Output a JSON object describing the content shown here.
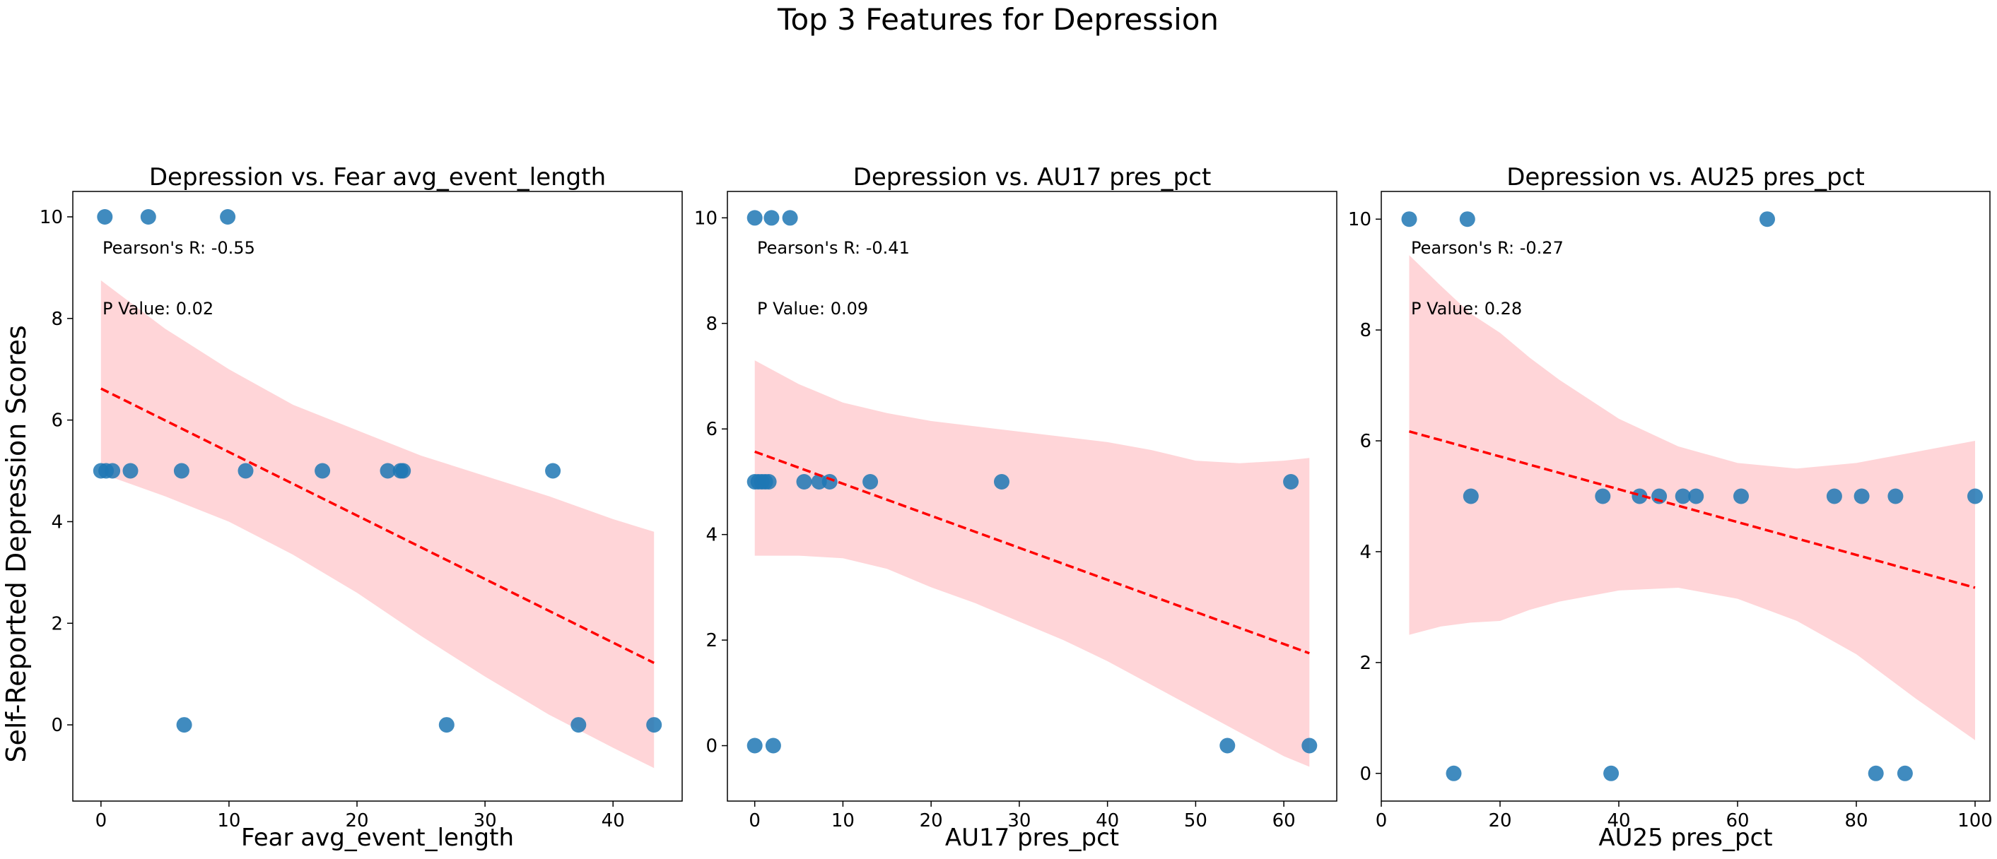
{
  "title": "Top 3 Features for Depression",
  "ylabel": "Self-Reported Depression Scores",
  "colors": {
    "points": "#1f77b4",
    "fit": "#ff0000",
    "band": "#ffb3b8"
  },
  "chart_data": [
    {
      "type": "scatter",
      "title": "Depression vs. Fear avg_event_length",
      "xlabel": "Fear avg_event_length",
      "ylabel": "Self-Reported Depression Scores",
      "xlim": [
        -2.2,
        45.4
      ],
      "ylim": [
        -1.5,
        10.5
      ],
      "xticks": [
        0,
        10,
        20,
        30,
        40
      ],
      "yticks": [
        0,
        2,
        4,
        6,
        8,
        10
      ],
      "points": [
        [
          0.3,
          10
        ],
        [
          3.7,
          10
        ],
        [
          9.9,
          10
        ],
        [
          0.0,
          5
        ],
        [
          0.4,
          5
        ],
        [
          0.9,
          5
        ],
        [
          2.3,
          5
        ],
        [
          6.3,
          5
        ],
        [
          11.3,
          5
        ],
        [
          17.3,
          5
        ],
        [
          22.4,
          5
        ],
        [
          23.4,
          5
        ],
        [
          23.6,
          5
        ],
        [
          35.3,
          5
        ],
        [
          6.5,
          0
        ],
        [
          27.0,
          0
        ],
        [
          37.3,
          0
        ],
        [
          43.2,
          0
        ]
      ],
      "fit": {
        "x": [
          0.0,
          43.2
        ],
        "y": [
          6.62,
          1.22
        ]
      },
      "band": {
        "x": [
          0,
          5,
          10,
          15,
          20,
          25,
          30,
          35,
          40,
          43.2
        ],
        "upper": [
          8.75,
          7.8,
          7.0,
          6.3,
          5.8,
          5.3,
          4.9,
          4.5,
          4.05,
          3.8
        ],
        "lower": [
          4.95,
          4.5,
          4.0,
          3.35,
          2.6,
          1.75,
          0.95,
          0.2,
          -0.45,
          -0.85
        ]
      },
      "annotations": [
        "Pearson's R: -0.55",
        "P Value: 0.02"
      ]
    },
    {
      "type": "scatter",
      "title": "Depression vs. AU17 pres_pct",
      "xlabel": "AU17 pres_pct",
      "ylabel": "",
      "xlim": [
        -3.1,
        66.0
      ],
      "ylim": [
        -1.05,
        10.5
      ],
      "xticks": [
        0,
        10,
        20,
        30,
        40,
        50,
        60
      ],
      "yticks": [
        0,
        2,
        4,
        6,
        8,
        10
      ],
      "points": [
        [
          0.0,
          10
        ],
        [
          1.9,
          10
        ],
        [
          4.0,
          10
        ],
        [
          0.0,
          5
        ],
        [
          0.4,
          5
        ],
        [
          0.8,
          5
        ],
        [
          1.2,
          5
        ],
        [
          1.6,
          5
        ],
        [
          5.6,
          5
        ],
        [
          7.3,
          5
        ],
        [
          8.5,
          5
        ],
        [
          13.1,
          5
        ],
        [
          28.0,
          5
        ],
        [
          60.8,
          5
        ],
        [
          0.0,
          0
        ],
        [
          2.1,
          0
        ],
        [
          53.6,
          0
        ],
        [
          62.9,
          0
        ]
      ],
      "fit": {
        "x": [
          0.0,
          62.9
        ],
        "y": [
          5.57,
          1.75
        ]
      },
      "band": {
        "x": [
          0,
          5,
          10,
          15,
          20,
          25,
          30,
          35,
          40,
          45,
          50,
          55,
          60,
          62.9
        ],
        "upper": [
          7.3,
          6.85,
          6.5,
          6.3,
          6.15,
          6.05,
          5.95,
          5.85,
          5.75,
          5.6,
          5.4,
          5.35,
          5.4,
          5.45
        ],
        "lower": [
          3.6,
          3.6,
          3.55,
          3.35,
          3.0,
          2.7,
          2.35,
          2.0,
          1.6,
          1.15,
          0.7,
          0.25,
          -0.2,
          -0.4
        ]
      },
      "annotations": [
        "Pearson's R: -0.41",
        "P Value: 0.09"
      ]
    },
    {
      "type": "scatter",
      "title": "Depression vs. AU25 pres_pct",
      "xlabel": "AU25 pres_pct",
      "ylabel": "",
      "xlim": [
        0,
        102.5
      ],
      "ylim": [
        -0.5,
        10.5
      ],
      "xticks": [
        0,
        20,
        40,
        60,
        80,
        100
      ],
      "yticks": [
        0,
        2,
        4,
        6,
        8,
        10
      ],
      "points": [
        [
          4.7,
          10
        ],
        [
          14.5,
          10
        ],
        [
          65.0,
          10
        ],
        [
          15.1,
          5
        ],
        [
          37.3,
          5
        ],
        [
          43.5,
          5
        ],
        [
          46.8,
          5
        ],
        [
          50.8,
          5
        ],
        [
          53.0,
          5
        ],
        [
          60.6,
          5
        ],
        [
          76.3,
          5
        ],
        [
          80.9,
          5
        ],
        [
          86.6,
          5
        ],
        [
          100.0,
          5
        ],
        [
          12.2,
          0
        ],
        [
          38.7,
          0
        ],
        [
          83.3,
          0
        ],
        [
          88.2,
          0
        ]
      ],
      "fit": {
        "x": [
          4.7,
          100.0
        ],
        "y": [
          6.17,
          3.35
        ]
      },
      "band": {
        "x": [
          4.7,
          10,
          15,
          20,
          25,
          30,
          40,
          50,
          60,
          70,
          80,
          90,
          100
        ],
        "upper": [
          9.35,
          8.8,
          8.3,
          7.95,
          7.5,
          7.1,
          6.4,
          5.9,
          5.6,
          5.5,
          5.6,
          5.8,
          6.0
        ],
        "lower": [
          2.5,
          2.65,
          2.72,
          2.75,
          2.95,
          3.1,
          3.3,
          3.35,
          3.15,
          2.75,
          2.15,
          1.35,
          0.6
        ]
      },
      "annotations": [
        "Pearson's R: -0.27",
        "P Value: 0.28"
      ]
    }
  ]
}
